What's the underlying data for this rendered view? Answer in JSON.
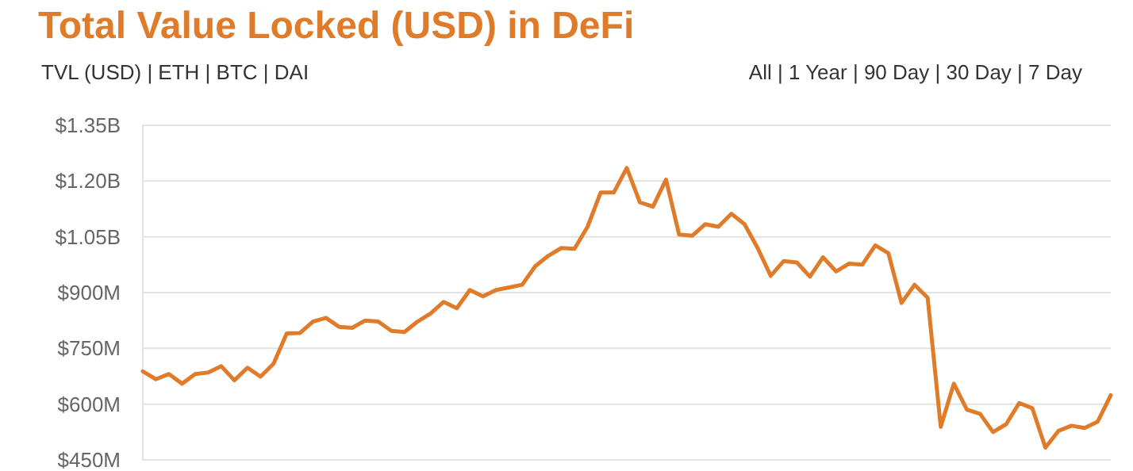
{
  "chart_data": {
    "type": "line",
    "title": "Total Value Locked (USD) in DeFi",
    "annotations": [
      "TVL (USD) | ETH | BTC | DAI",
      "All | 1 Year | 90 Day | 30 Day | 7 Day"
    ],
    "categories": [
      null,
      null,
      null,
      null,
      null,
      null,
      null,
      null,
      null,
      null,
      null,
      null,
      null,
      null,
      null,
      null,
      null,
      null,
      null,
      null,
      null,
      null,
      null,
      null,
      null,
      null,
      null,
      null,
      null,
      null,
      null,
      null,
      null,
      null,
      null,
      null,
      null,
      null,
      null,
      null,
      null,
      null,
      null,
      null,
      null,
      null,
      null,
      null,
      null,
      null,
      null,
      null,
      null,
      null,
      null,
      null,
      null,
      null,
      null,
      null,
      null,
      null,
      null,
      null,
      null,
      null,
      null,
      null,
      null,
      null,
      null,
      null,
      null,
      null,
      null
    ],
    "series": [
      {
        "color": "#e07b2a",
        "values": [
          688000000,
          667000000,
          681000000,
          655000000,
          681000000,
          685000000,
          702000000,
          664000000,
          698000000,
          674000000,
          709000000,
          790000000,
          791000000,
          822000000,
          832000000,
          808000000,
          805000000,
          825000000,
          822000000,
          797000000,
          794000000,
          822000000,
          844000000,
          875000000,
          858000000,
          907000000,
          890000000,
          907000000,
          914000000,
          921000000,
          971000000,
          999000000,
          1020000000,
          1018000000,
          1077000000,
          1169000000,
          1169000000,
          1235000000,
          1143000000,
          1131000000,
          1204000000,
          1056000000,
          1053000000,
          1084000000,
          1077000000,
          1112000000,
          1084000000,
          1020000000,
          945000000,
          985000000,
          981000000,
          943000000,
          995000000,
          957000000,
          978000000,
          975000000,
          1027000000,
          1006000000,
          872000000,
          921000000,
          886000000,
          539000000,
          655000000,
          585000000,
          574000000,
          525000000,
          546000000,
          603000000,
          589000000,
          483000000,
          528000000,
          542000000,
          536000000,
          553000000,
          624000000
        ]
      }
    ],
    "ylim": [
      450000000,
      1350000000
    ],
    "yticks": [
      {
        "value": 450000000,
        "label": "$450M"
      },
      {
        "value": 600000000,
        "label": "$600M"
      },
      {
        "value": 750000000,
        "label": "$750M"
      },
      {
        "value": 900000000,
        "label": "$900M"
      },
      {
        "value": 1050000000,
        "label": "$1.05B"
      },
      {
        "value": 1200000000,
        "label": "$1.20B"
      },
      {
        "value": 1350000000,
        "label": "$1.35B"
      }
    ],
    "grid": "y",
    "marker": "none",
    "line_style": "solid"
  }
}
